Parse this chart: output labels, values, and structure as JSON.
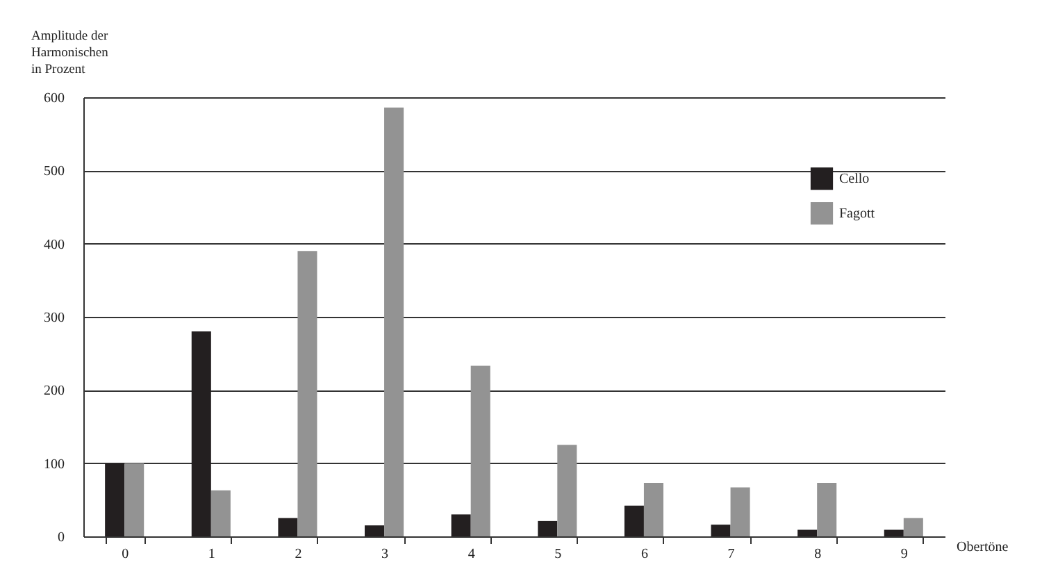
{
  "chart_data": {
    "type": "bar",
    "xlabel": "Obertöne",
    "ylabel": "Amplitude der Harmonischen in Prozent",
    "categories": [
      "0",
      "1",
      "2",
      "3",
      "4",
      "5",
      "6",
      "7",
      "8",
      "9"
    ],
    "series": [
      {
        "name": "Cello",
        "color": "#231f20",
        "values": [
          100,
          280,
          25,
          15,
          30,
          21,
          42,
          16,
          9,
          9
        ]
      },
      {
        "name": "Fagott",
        "color": "#939393",
        "values": [
          100,
          63,
          390,
          586,
          233,
          125,
          73,
          67,
          73,
          25
        ]
      }
    ],
    "ylim": [
      0,
      600
    ],
    "yticks": [
      0,
      100,
      200,
      300,
      400,
      500,
      600
    ],
    "grid": "y",
    "legend": "top right"
  }
}
